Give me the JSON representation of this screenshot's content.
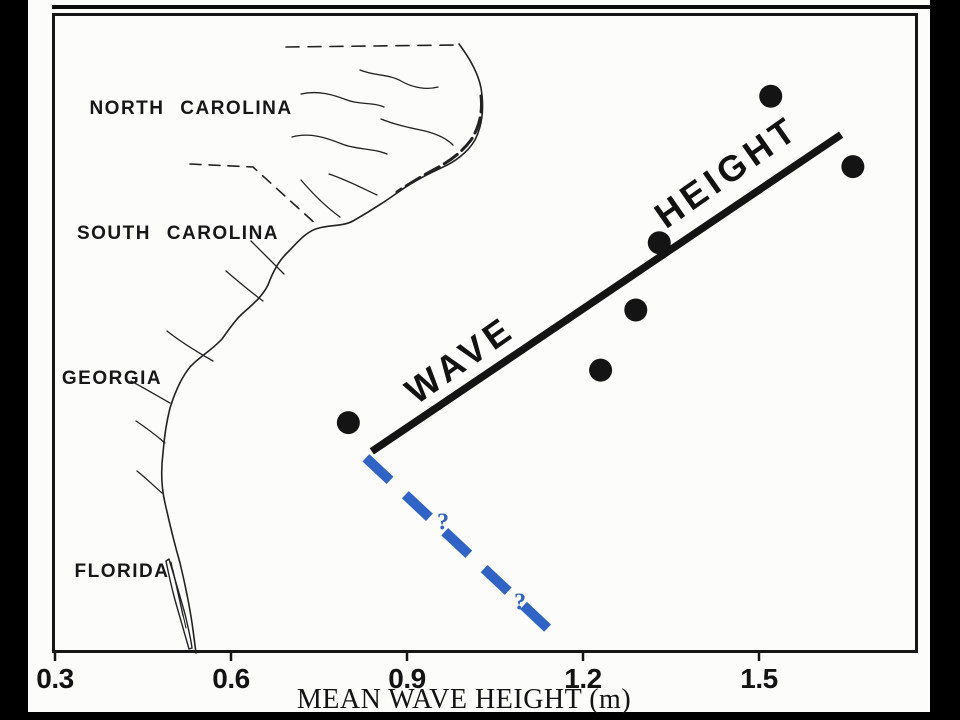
{
  "figure": {
    "description_visible_text_only": true
  },
  "map": {
    "labels": [
      {
        "id": "north-carolina",
        "text": "NORTH CAROLINA"
      },
      {
        "id": "south-carolina",
        "text": "SOUTH CAROLINA"
      },
      {
        "id": "georgia",
        "text": "GEORGIA"
      },
      {
        "id": "florida",
        "text": "FLORIDA"
      }
    ]
  },
  "annotations": {
    "trend_word_1": "WAVE",
    "trend_word_2": "HEIGHT",
    "question_mark": "?"
  },
  "axis": {
    "label": "MEAN WAVE HEIGHT (m)",
    "ticks": [
      "0.3",
      "0.6",
      "0.9",
      "1.2",
      "1.5"
    ]
  },
  "colors": {
    "ink": "#141414",
    "accent_blue": "#2F63C5",
    "background": "#fcfcfa",
    "frame_black": "#000000"
  },
  "chart_data": {
    "type": "scatter",
    "title": "",
    "xlabel": "MEAN WAVE HEIGHT (m)",
    "ylabel": "",
    "x_ticks": [
      0.3,
      0.6,
      0.9,
      1.2,
      1.5
    ],
    "xlim": [
      0.3,
      1.78
    ],
    "grid": false,
    "legend": "none",
    "y_axis_note": "vertical axis unlabeled; background map of NC-SC-GA-FL coastline indicates alongshore position",
    "points": [
      {
        "x_m": 0.8,
        "y_frac": 0.64
      },
      {
        "x_m": 1.23,
        "y_frac": 0.558
      },
      {
        "x_m": 1.29,
        "y_frac": 0.464
      },
      {
        "x_m": 1.33,
        "y_frac": 0.359
      },
      {
        "x_m": 1.52,
        "y_frac": 0.13
      },
      {
        "x_m": 1.66,
        "y_frac": 0.24
      }
    ],
    "trend_line": {
      "label": "WAVE HEIGHT",
      "x_start_m": 0.84,
      "y_start_frac": 0.685,
      "x_end_m": 1.64,
      "y_end_frac": 0.19
    },
    "dashed_extension": {
      "style": "blue dashed, annotated with question marks",
      "x_start_m": 0.83,
      "y_start_frac": 0.695,
      "x_end_m": 1.15,
      "y_end_frac": 0.97
    }
  }
}
